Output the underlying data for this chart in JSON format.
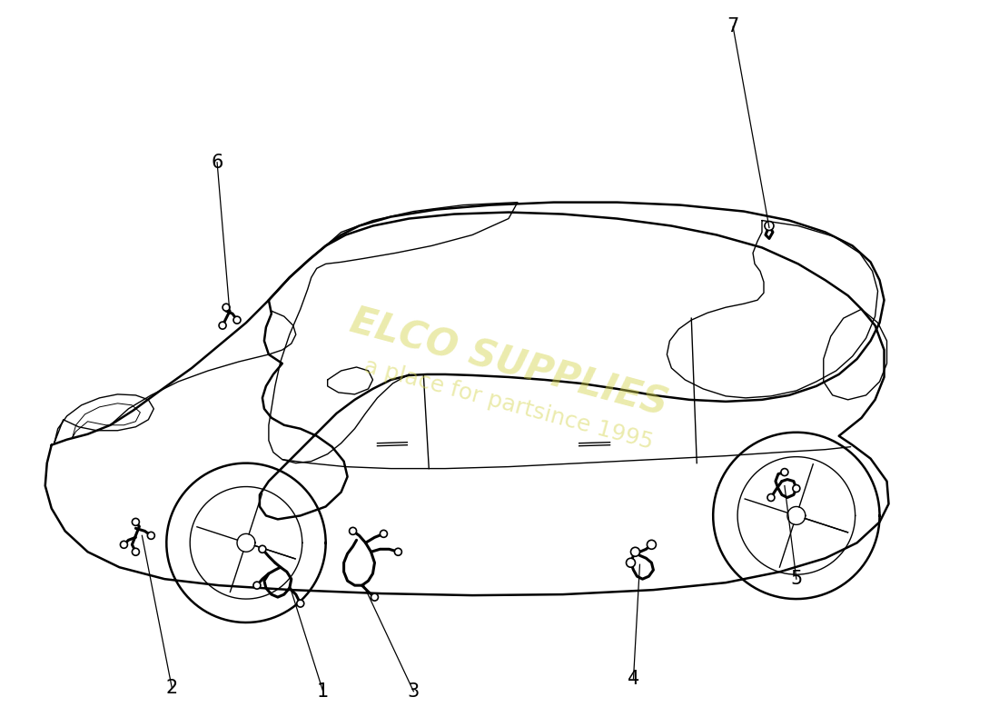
{
  "background_color": "#ffffff",
  "line_color": "#000000",
  "watermark_color": "#d4d44a",
  "watermark_alpha": 0.45,
  "car_lw": 1.8,
  "thin_lw": 1.0,
  "harness_lw": 2.2
}
